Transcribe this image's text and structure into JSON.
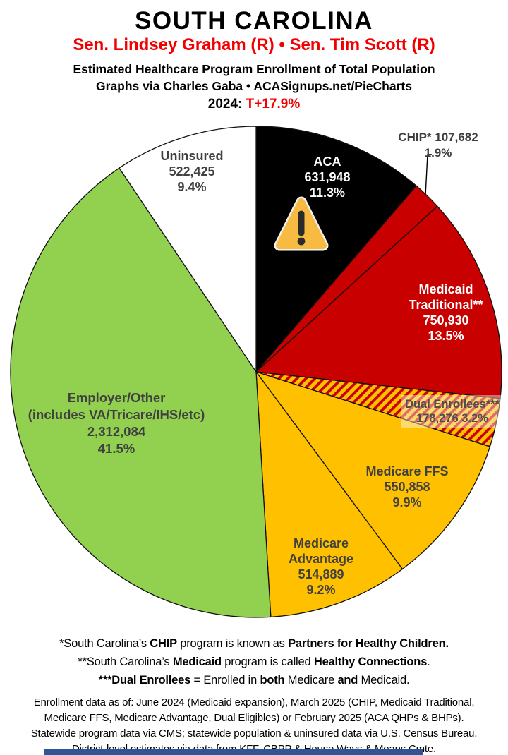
{
  "header": {
    "state": "SOUTH CAROLINA",
    "senators": "Sen. Lindsey Graham (R) • Sen. Tim Scott (R)",
    "subtitle1": "Estimated Healthcare Program Enrollment of Total Population",
    "subtitle2": "Graphs via Charles Gaba   •   ACASignups.net/PieCharts",
    "year_label": "2024:",
    "year_value": "T+17.9%"
  },
  "colors": {
    "header_red": "#F20000",
    "pie_red": "#C80000",
    "pie_gold": "#FFC000",
    "pie_green": "#92D050",
    "pie_black": "#000000",
    "pie_white": "#FFFFFF",
    "slice_outline": "#111111",
    "warning_fill": "#F6BB40",
    "warning_glyph": "#2B2B2B",
    "bottom_bar_blue": "#2F5597"
  },
  "chart_data": {
    "type": "pie",
    "title": "Estimated Healthcare Program Enrollment of Total Population",
    "start_angle_deg": 0,
    "direction": "clockwise",
    "legend_position": "labels-on-slices",
    "slices": [
      {
        "label": "ACA",
        "value": 631948,
        "pct": 11.3,
        "color": "#000000",
        "display_lines": [
          "ACA",
          "631,948",
          "11.3%"
        ]
      },
      {
        "label": "CHIP*",
        "value": 107682,
        "pct": 1.9,
        "color": "#C80000",
        "display_lines": [
          "CHIP* 107,682",
          "1.9%"
        ]
      },
      {
        "label": "Medicaid Traditional**",
        "value": 750930,
        "pct": 13.5,
        "color": "#C80000",
        "display_lines": [
          "Medicaid",
          "Traditional**",
          "750,930",
          "13.5%"
        ]
      },
      {
        "label": "Dual Enrollees***",
        "value": 178276,
        "pct": 3.2,
        "color": "hatch",
        "display_lines": [
          "Dual Enrollees***",
          "178,276 3.2%"
        ]
      },
      {
        "label": "Medicare FFS",
        "value": 550858,
        "pct": 9.9,
        "color": "#FFC000",
        "display_lines": [
          "Medicare FFS",
          "550,858",
          "9.9%"
        ]
      },
      {
        "label": "Medicare Advantage",
        "value": 514889,
        "pct": 9.2,
        "color": "#FFC000",
        "display_lines": [
          "Medicare",
          "Advantage",
          "514,889",
          "9.2%"
        ]
      },
      {
        "label": "Employer/Other",
        "value": 2312084,
        "pct": 41.5,
        "color": "#92D050",
        "display_lines": [
          "Employer/Other",
          "(includes VA/Tricare/IHS/etc)",
          "2,312,084",
          "41.5%"
        ]
      },
      {
        "label": "Uninsured",
        "value": 522425,
        "pct": 9.4,
        "color": "#FFFFFF",
        "display_lines": [
          "Uninsured",
          "522,425",
          "9.4%"
        ]
      }
    ],
    "hatch": {
      "bg": "#FFC000",
      "stripe": "#C80000"
    }
  },
  "footnotes": {
    "fn1": {
      "p0": "*South Carolina’s ",
      "p1": "CHIP",
      "p2": " program is known as ",
      "p3": "Partners for Healthy Children."
    },
    "fn2": {
      "p0": "**South Carolina’s ",
      "p1": "Medicaid",
      "p2": " program is called ",
      "p3": "Healthy Connections",
      "p4": "."
    },
    "fn3": {
      "p0": "***Dual Enrollees",
      "p1": " = Enrolled in ",
      "p2": "both",
      "p3": " Medicare ",
      "p4": "and",
      "p5": " Medicaid."
    }
  },
  "sources": {
    "line1": "Enrollment data as of: June 2024 (Medicaid expansion), March 2025 (CHIP, Medicaid Traditional,",
    "line2": "Medicare FFS, Medicare Advantage, Dual Eligibles) or February 2025 (ACA QHPs & BHPs).",
    "line3": "Statewide program data via CMS; statewide population & uninsured data via U.S. Census Bureau.",
    "line4": "District-level estimates via data from KFF, CBPP & House Ways & Means Cmte."
  }
}
